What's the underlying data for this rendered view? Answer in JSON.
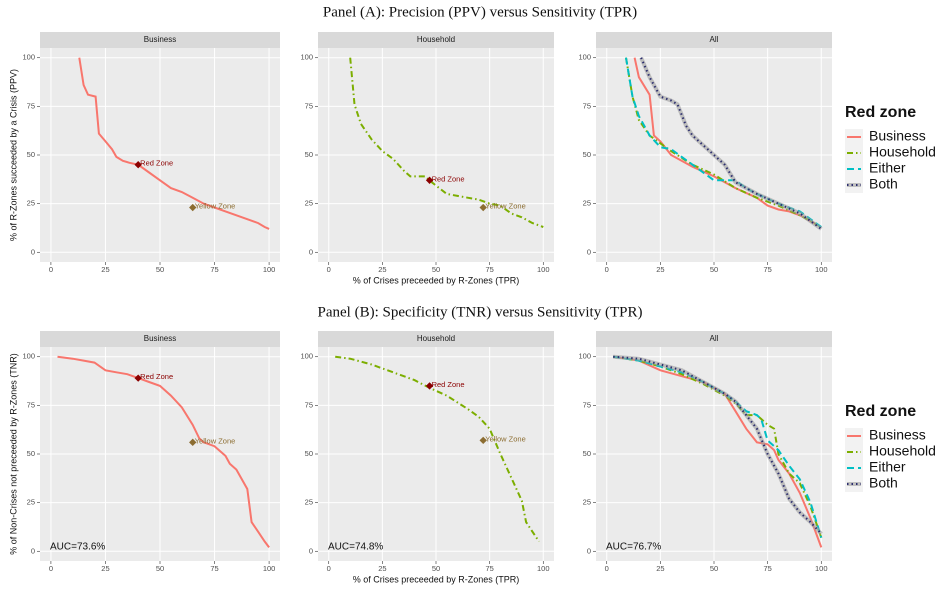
{
  "chart_data": [
    {
      "type": "line",
      "suptitle": "Panel (A): Precision (PPV) versus Sensitivity (TPR)",
      "title": "Business",
      "ylabel": "% of R-Zones succeeded by a Crisis (PPV)",
      "xlim": [
        -5,
        105
      ],
      "ylim": [
        -5,
        105
      ],
      "xticks": [
        0,
        25,
        50,
        75,
        100
      ],
      "yticks": [
        0,
        25,
        50,
        75,
        100
      ],
      "grid": true,
      "series": [
        {
          "name": "Business",
          "color": "#F8766D",
          "linestyle": "solid",
          "x": [
            13,
            15,
            17,
            20.5,
            22,
            25,
            28,
            30,
            33,
            36,
            40,
            45,
            50,
            55,
            60,
            65,
            70,
            75,
            80,
            85,
            90,
            95,
            98,
            100
          ],
          "values": [
            100,
            86,
            81,
            80,
            61,
            57,
            53,
            49,
            47,
            46,
            45,
            41,
            37,
            33,
            31,
            28,
            25,
            23,
            21,
            19,
            17,
            15,
            13,
            12
          ]
        }
      ],
      "points": [
        {
          "label": "Red Zone",
          "x": 40,
          "y": 45,
          "color": "#8B0000"
        },
        {
          "label": "Yellow Zone",
          "x": 65,
          "y": 23,
          "color": "#8C6D31"
        }
      ]
    },
    {
      "type": "line",
      "title": "Household",
      "xlabel": "% of Crises preceeded by R-Zones (TPR)",
      "xlim": [
        -5,
        105
      ],
      "ylim": [
        -5,
        105
      ],
      "xticks": [
        0,
        25,
        50,
        75,
        100
      ],
      "yticks": [
        0,
        25,
        50,
        75,
        100
      ],
      "grid": true,
      "series": [
        {
          "name": "Household",
          "color": "#7CAE00",
          "linestyle": "dashdot",
          "x": [
            10,
            12,
            15,
            20,
            25,
            30,
            35,
            38,
            45,
            48,
            55,
            60,
            65,
            70,
            75,
            80,
            85,
            90,
            95,
            100
          ],
          "values": [
            100,
            76,
            66,
            58,
            52,
            48,
            42,
            39,
            39,
            36,
            30,
            29,
            28,
            27,
            25,
            24,
            20,
            18,
            15,
            13
          ]
        }
      ],
      "points": [
        {
          "label": "Red Zone",
          "x": 47,
          "y": 37,
          "color": "#8B0000"
        },
        {
          "label": "Yellow Zone",
          "x": 72,
          "y": 23,
          "color": "#8C6D31"
        }
      ]
    },
    {
      "type": "line",
      "title": "All",
      "legend_title": "Red zone",
      "xlim": [
        -5,
        105
      ],
      "ylim": [
        -5,
        105
      ],
      "xticks": [
        0,
        25,
        50,
        75,
        100
      ],
      "yticks": [
        0,
        25,
        50,
        75,
        100
      ],
      "grid": true,
      "series": [
        {
          "name": "Business",
          "color": "#F8766D",
          "linestyle": "solid",
          "x": [
            13,
            15,
            20,
            22,
            25,
            30,
            40,
            50,
            60,
            70,
            75,
            80,
            85,
            90,
            95,
            100
          ],
          "values": [
            100,
            90,
            81,
            60,
            57,
            50,
            44,
            39,
            33,
            28,
            24,
            22,
            21,
            19,
            16,
            13
          ]
        },
        {
          "name": "Household",
          "color": "#7CAE00",
          "linestyle": "dashdot",
          "x": [
            9,
            12,
            15,
            20,
            30,
            40,
            50,
            60,
            70,
            80,
            90,
            100
          ],
          "values": [
            100,
            80,
            68,
            60,
            52,
            45,
            40,
            33,
            28,
            24,
            19,
            13
          ]
        },
        {
          "name": "Either",
          "color": "#00BFC4",
          "linestyle": "dashed",
          "x": [
            9,
            12,
            15,
            20,
            25,
            30,
            40,
            50,
            60,
            65,
            70,
            80,
            90,
            100
          ],
          "values": [
            100,
            80,
            70,
            60,
            54,
            53,
            45,
            37,
            37,
            33,
            30,
            25,
            21,
            13
          ]
        },
        {
          "name": "Both",
          "color": "#2B2D6E",
          "linestyle": "dotted",
          "x": [
            16,
            20,
            25,
            30,
            33,
            37,
            40,
            45,
            50,
            55,
            60,
            70,
            80,
            90,
            95,
            100
          ],
          "values": [
            100,
            90,
            80,
            78,
            76,
            65,
            60,
            55,
            50,
            45,
            36,
            30,
            25,
            20,
            16,
            12
          ]
        }
      ]
    },
    {
      "type": "line",
      "suptitle": "Panel (B): Specificity (TNR) versus Sensitivity (TPR)",
      "title": "Business",
      "ylabel": "% of Non-Crises not preceeded by R-Zones (TNR)",
      "annotation": "AUC=73.6%",
      "xlim": [
        -5,
        105
      ],
      "ylim": [
        -5,
        105
      ],
      "xticks": [
        0,
        25,
        50,
        75,
        100
      ],
      "yticks": [
        0,
        25,
        50,
        75,
        100
      ],
      "grid": true,
      "series": [
        {
          "name": "Business",
          "color": "#F8766D",
          "linestyle": "solid",
          "x": [
            3,
            10,
            15,
            20,
            25,
            30,
            35,
            40,
            45,
            50,
            55,
            60,
            65,
            68,
            70,
            75,
            80,
            82,
            85,
            90,
            92,
            95,
            98,
            100
          ],
          "values": [
            100,
            99,
            98,
            97,
            93,
            92,
            91,
            89,
            87,
            85,
            80,
            74,
            65,
            58,
            56,
            54,
            49,
            45,
            42,
            32,
            15,
            10,
            5,
            2
          ]
        }
      ],
      "points": [
        {
          "label": "Red Zone",
          "x": 40,
          "y": 89,
          "color": "#8B0000"
        },
        {
          "label": "Yellow Zone",
          "x": 65,
          "y": 56,
          "color": "#8C6D31"
        }
      ]
    },
    {
      "type": "line",
      "title": "Household",
      "xlabel": "% of Crises preceeded by R-Zones (TPR)",
      "annotation": "AUC=74.8%",
      "xlim": [
        -5,
        105
      ],
      "ylim": [
        -5,
        105
      ],
      "xticks": [
        0,
        25,
        50,
        75,
        100
      ],
      "yticks": [
        0,
        25,
        50,
        75,
        100
      ],
      "grid": true,
      "series": [
        {
          "name": "Household",
          "color": "#7CAE00",
          "linestyle": "dashdot",
          "x": [
            3,
            10,
            20,
            30,
            40,
            47,
            55,
            65,
            70,
            75,
            80,
            85,
            90,
            92,
            95,
            98
          ],
          "values": [
            100,
            99,
            96,
            92,
            88,
            84,
            80,
            73,
            69,
            63,
            50,
            38,
            26,
            15,
            10,
            5
          ]
        }
      ],
      "points": [
        {
          "label": "Red Zone",
          "x": 47,
          "y": 85,
          "color": "#8B0000"
        },
        {
          "label": "Yellow Zone",
          "x": 72,
          "y": 57,
          "color": "#8C6D31"
        }
      ]
    },
    {
      "type": "line",
      "title": "All",
      "legend_title": "Red zone",
      "annotation": "AUC=76.7%",
      "xlim": [
        -5,
        105
      ],
      "ylim": [
        -5,
        105
      ],
      "xticks": [
        0,
        25,
        50,
        75,
        100
      ],
      "yticks": [
        0,
        25,
        50,
        75,
        100
      ],
      "grid": true,
      "series": [
        {
          "name": "Business",
          "color": "#F8766D",
          "linestyle": "solid",
          "x": [
            3,
            15,
            25,
            35,
            45,
            55,
            60,
            65,
            70,
            75,
            78,
            80,
            85,
            90,
            95,
            100
          ],
          "values": [
            100,
            98,
            93,
            90,
            87,
            81,
            72,
            63,
            56,
            55,
            52,
            47,
            40,
            30,
            17,
            2
          ]
        },
        {
          "name": "Household",
          "color": "#7CAE00",
          "linestyle": "dashdot",
          "x": [
            3,
            15,
            25,
            35,
            45,
            55,
            60,
            65,
            70,
            75,
            78,
            80,
            85,
            90,
            95,
            100
          ],
          "values": [
            100,
            98,
            95,
            91,
            86,
            80,
            76,
            70,
            70,
            65,
            63,
            50,
            40,
            35,
            23,
            7
          ]
        },
        {
          "name": "Either",
          "color": "#00BFC4",
          "linestyle": "dashed",
          "x": [
            3,
            15,
            25,
            35,
            45,
            55,
            60,
            65,
            70,
            72,
            75,
            80,
            85,
            90,
            95,
            100
          ],
          "values": [
            100,
            98,
            95,
            92,
            87,
            81,
            77,
            72,
            70,
            68,
            57,
            52,
            44,
            37,
            25,
            7
          ]
        },
        {
          "name": "Both",
          "color": "#2B2D6E",
          "linestyle": "dotted",
          "x": [
            3,
            15,
            25,
            35,
            45,
            55,
            60,
            65,
            70,
            75,
            80,
            85,
            90,
            95,
            100
          ],
          "values": [
            100,
            99,
            96,
            93,
            87,
            81,
            77,
            70,
            63,
            50,
            40,
            27,
            20,
            15,
            9
          ]
        }
      ]
    }
  ]
}
